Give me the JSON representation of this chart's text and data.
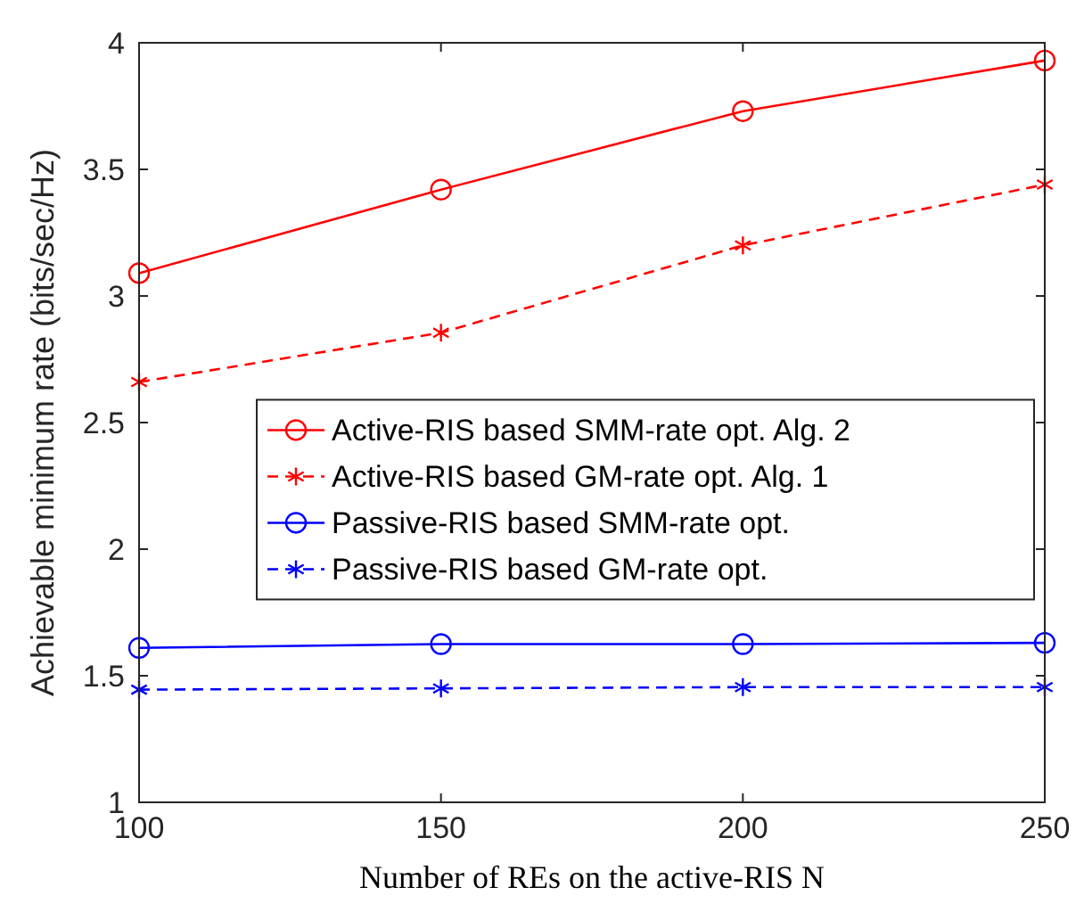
{
  "chart_data": {
    "type": "line",
    "xlabel": "Number of REs on the active-RIS N",
    "ylabel": "Achievable minimum rate (bits/sec/Hz)",
    "x": [
      100,
      150,
      200,
      250
    ],
    "xlim": [
      100,
      250
    ],
    "xticks": [
      100,
      150,
      200,
      250
    ],
    "ylim": [
      1,
      4
    ],
    "yticks": [
      1,
      1.5,
      2,
      2.5,
      3,
      3.5,
      4
    ],
    "grid": false,
    "legend": "right",
    "series": [
      {
        "name": "Active-RIS based SMM-rate opt. Alg. 2",
        "color": "#ff0000",
        "values": [
          3.09,
          3.42,
          3.73,
          3.93
        ],
        "marker": "circle",
        "line_style": "solid"
      },
      {
        "name": "Active-RIS based GM-rate opt. Alg. 1",
        "color": "#ff0000",
        "values": [
          2.66,
          2.855,
          3.2,
          3.44
        ],
        "marker": "cross",
        "line_style": "dashed"
      },
      {
        "name": "Passive-RIS based SMM-rate opt.",
        "color": "#0000ff",
        "values": [
          1.61,
          1.625,
          1.625,
          1.63
        ],
        "marker": "circle",
        "line_style": "solid"
      },
      {
        "name": "Passive-RIS based GM-rate opt.",
        "color": "#0000ff",
        "values": [
          1.445,
          1.45,
          1.455,
          1.455
        ],
        "marker": "cross",
        "line_style": "dashed"
      }
    ]
  }
}
